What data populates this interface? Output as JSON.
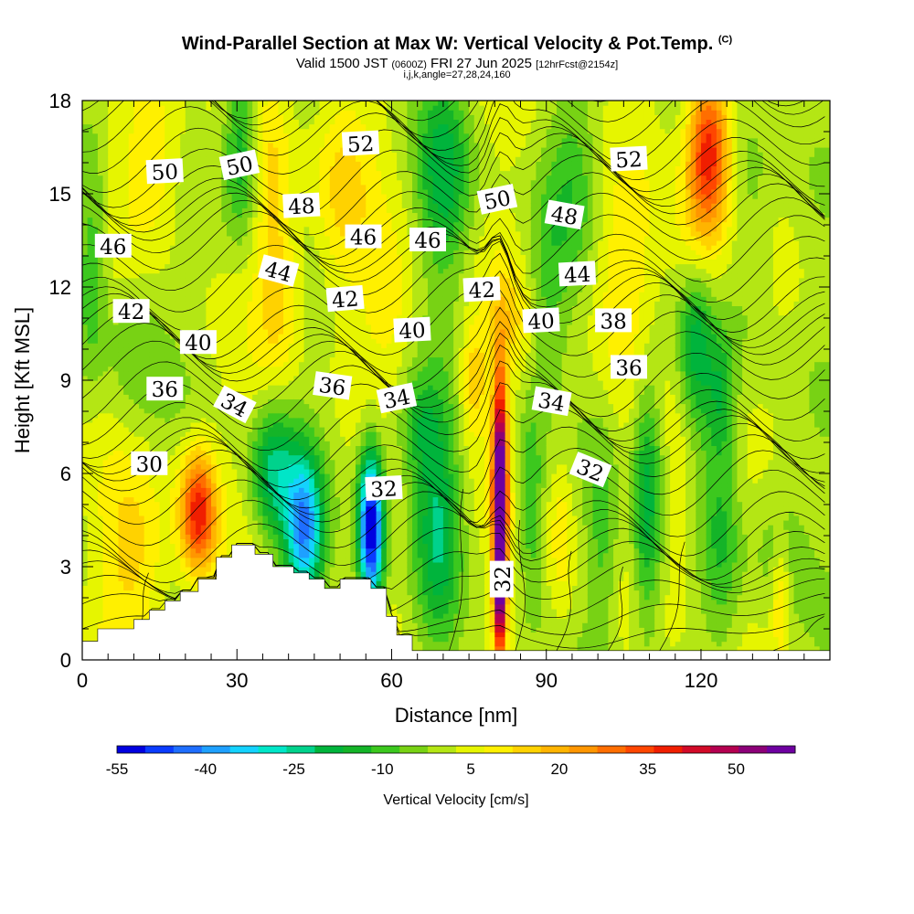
{
  "header": {
    "title": "Wind-Parallel Section at Max W: Vertical Velocity & Pot.Temp.",
    "title_mark": "(C)",
    "valid_prefix": "Valid 1500 JST",
    "valid_utc": "(0600Z)",
    "valid_date": "FRI 27 Jun 2025",
    "forecast_info": "[12hrFcst@2154z]",
    "params": "i,j,k,angle=27,28,24,160"
  },
  "chart_data": {
    "type": "contour-section",
    "xlabel": "Distance [nm]",
    "ylabel": "Height [Kft MSL]",
    "xlim": [
      0,
      145
    ],
    "ylim": [
      0,
      18
    ],
    "x_ticks": [
      0,
      30,
      60,
      90,
      120
    ],
    "y_ticks": [
      0,
      3,
      6,
      9,
      12,
      15,
      18
    ],
    "colorbar": {
      "label": "Vertical Velocity [cm/s]",
      "tick_labels": [
        "-55",
        "-40",
        "-25",
        "-10",
        "5",
        "20",
        "35",
        "50"
      ],
      "tick_values": [
        -55,
        -40,
        -25,
        -10,
        5,
        20,
        35,
        50
      ],
      "range": [
        -55,
        60
      ],
      "step": 5,
      "colors": [
        "#0000e0",
        "#0a3cff",
        "#1e6eff",
        "#1ea0ff",
        "#14d2ff",
        "#00e6c8",
        "#00d28c",
        "#00b43c",
        "#14b428",
        "#3cc81e",
        "#78d214",
        "#b4e614",
        "#e6f500",
        "#fff000",
        "#ffd200",
        "#ffb400",
        "#ff9600",
        "#ff6e00",
        "#ff4600",
        "#f01e00",
        "#d20a28",
        "#b40050",
        "#8c0078",
        "#6e00a0"
      ]
    },
    "theta_labels": [
      {
        "text": "52",
        "x": 54,
        "y": 16.6,
        "rot": -3
      },
      {
        "text": "52",
        "x": 106,
        "y": 16.1,
        "rot": -3
      },
      {
        "text": "50",
        "x": 16,
        "y": 15.7,
        "rot": -3
      },
      {
        "text": "50",
        "x": 30.5,
        "y": 15.9,
        "rot": -12
      },
      {
        "text": "50",
        "x": 80.5,
        "y": 14.8,
        "rot": -12
      },
      {
        "text": "48",
        "x": 42.5,
        "y": 14.6,
        "rot": -3
      },
      {
        "text": "48",
        "x": 93.5,
        "y": 14.3,
        "rot": 10
      },
      {
        "text": "46",
        "x": 6,
        "y": 13.3,
        "rot": 0
      },
      {
        "text": "46",
        "x": 54.5,
        "y": 13.6,
        "rot": 0
      },
      {
        "text": "46",
        "x": 67,
        "y": 13.5,
        "rot": 0
      },
      {
        "text": "44",
        "x": 38,
        "y": 12.5,
        "rot": 15
      },
      {
        "text": "44",
        "x": 96,
        "y": 12.4,
        "rot": -3
      },
      {
        "text": "42",
        "x": 9.5,
        "y": 11.2,
        "rot": 0
      },
      {
        "text": "42",
        "x": 51,
        "y": 11.6,
        "rot": -5
      },
      {
        "text": "42",
        "x": 77.5,
        "y": 11.9,
        "rot": -3
      },
      {
        "text": "40",
        "x": 22.5,
        "y": 10.2,
        "rot": 0
      },
      {
        "text": "40",
        "x": 64,
        "y": 10.6,
        "rot": -3
      },
      {
        "text": "40",
        "x": 89,
        "y": 10.9,
        "rot": -3
      },
      {
        "text": "38",
        "x": 103,
        "y": 10.9,
        "rot": 0
      },
      {
        "text": "36",
        "x": 16,
        "y": 8.7,
        "rot": 0
      },
      {
        "text": "36",
        "x": 48.5,
        "y": 8.8,
        "rot": 8
      },
      {
        "text": "36",
        "x": 106,
        "y": 9.4,
        "rot": 0
      },
      {
        "text": "34",
        "x": 29.5,
        "y": 8.2,
        "rot": 28
      },
      {
        "text": "34",
        "x": 61,
        "y": 8.4,
        "rot": -12
      },
      {
        "text": "34",
        "x": 91,
        "y": 8.3,
        "rot": 10
      },
      {
        "text": "30",
        "x": 13,
        "y": 6.3,
        "rot": 0
      },
      {
        "text": "32",
        "x": 58.5,
        "y": 5.5,
        "rot": -3
      },
      {
        "text": "32",
        "x": 98.5,
        "y": 6.1,
        "rot": 22
      },
      {
        "text": "32",
        "x": 81.5,
        "y": 2.6,
        "rot": -90
      }
    ]
  }
}
